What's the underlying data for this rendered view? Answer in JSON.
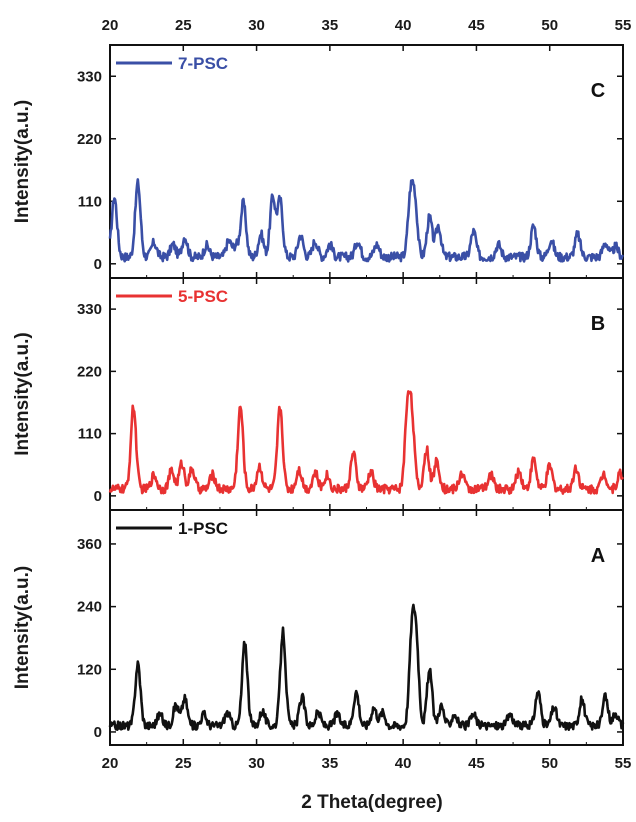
{
  "chart_data": {
    "type": "line",
    "xlabel": "2 Theta(degree)",
    "x_ticks": [
      20,
      25,
      30,
      35,
      40,
      45,
      50,
      55
    ],
    "xlim": [
      20,
      55
    ],
    "panels": [
      {
        "letter": "C",
        "ylabel": "Intensity(a.u.)",
        "y_ticks": [
          0,
          110,
          220,
          330
        ],
        "ylim": [
          -25,
          385
        ],
        "series": [
          {
            "name": "7-PSC",
            "color": "#3a4fa6",
            "peaks": [
              [
                20.3,
                105
              ],
              [
                21.9,
                130
              ],
              [
                23.0,
                25
              ],
              [
                24.3,
                22
              ],
              [
                25.1,
                35
              ],
              [
                26.6,
                20
              ],
              [
                28.1,
                28
              ],
              [
                28.6,
                20
              ],
              [
                29.1,
                95
              ],
              [
                30.3,
                40
              ],
              [
                31.1,
                105
              ],
              [
                31.6,
                100
              ],
              [
                33.0,
                38
              ],
              [
                34.0,
                28
              ],
              [
                35.0,
                22
              ],
              [
                36.9,
                28
              ],
              [
                38.2,
                22
              ],
              [
                40.5,
                100
              ],
              [
                40.8,
                90
              ],
              [
                41.8,
                70
              ],
              [
                42.4,
                55
              ],
              [
                44.8,
                45
              ],
              [
                46.5,
                22
              ],
              [
                48.9,
                55
              ],
              [
                50.1,
                30
              ],
              [
                51.9,
                40
              ],
              [
                53.8,
                25
              ],
              [
                54.5,
                18
              ]
            ]
          }
        ]
      },
      {
        "letter": "B",
        "ylabel": "Intensity(a.u.)",
        "y_ticks": [
          0,
          110,
          220,
          330
        ],
        "ylim": [
          -25,
          385
        ],
        "series": [
          {
            "name": "5-PSC",
            "color": "#e83232",
            "peaks": [
              [
                21.6,
                145
              ],
              [
                23.0,
                25
              ],
              [
                24.2,
                32
              ],
              [
                24.9,
                45
              ],
              [
                25.6,
                35
              ],
              [
                27.0,
                25
              ],
              [
                28.9,
                145
              ],
              [
                30.2,
                40
              ],
              [
                31.6,
                145
              ],
              [
                32.9,
                35
              ],
              [
                34.0,
                28
              ],
              [
                34.8,
                25
              ],
              [
                36.6,
                62
              ],
              [
                37.8,
                30
              ],
              [
                40.3,
                135
              ],
              [
                40.6,
                115
              ],
              [
                41.6,
                70
              ],
              [
                42.3,
                50
              ],
              [
                44.0,
                28
              ],
              [
                46.0,
                25
              ],
              [
                47.9,
                32
              ],
              [
                48.9,
                52
              ],
              [
                50.0,
                40
              ],
              [
                51.8,
                38
              ],
              [
                53.7,
                28
              ],
              [
                54.8,
                28
              ]
            ]
          }
        ]
      },
      {
        "letter": "A",
        "ylabel": "Intensity(a.u.)",
        "y_ticks": [
          0,
          120,
          240,
          360
        ],
        "ylim": [
          -25,
          425
        ],
        "series": [
          {
            "name": "1-PSC",
            "color": "#111111",
            "peaks": [
              [
                21.9,
                118
              ],
              [
                23.4,
                22
              ],
              [
                24.5,
                40
              ],
              [
                25.1,
                52
              ],
              [
                26.4,
                22
              ],
              [
                28.0,
                25
              ],
              [
                29.2,
                160
              ],
              [
                30.4,
                28
              ],
              [
                31.8,
                180
              ],
              [
                33.1,
                55
              ],
              [
                34.2,
                25
              ],
              [
                35.5,
                22
              ],
              [
                36.8,
                65
              ],
              [
                38.0,
                35
              ],
              [
                38.6,
                25
              ],
              [
                40.6,
                170
              ],
              [
                40.9,
                150
              ],
              [
                41.8,
                105
              ],
              [
                42.6,
                38
              ],
              [
                43.5,
                22
              ],
              [
                44.8,
                22
              ],
              [
                47.3,
                22
              ],
              [
                49.2,
                65
              ],
              [
                50.3,
                35
              ],
              [
                52.2,
                50
              ],
              [
                53.8,
                55
              ],
              [
                54.5,
                25
              ]
            ]
          }
        ]
      }
    ]
  }
}
